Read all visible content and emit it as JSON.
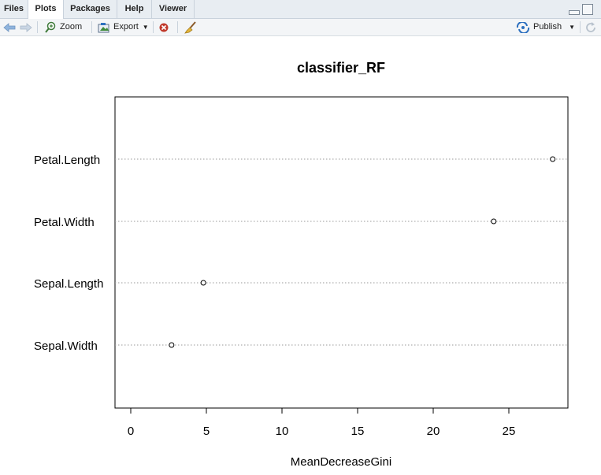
{
  "tabs": [
    "Files",
    "Plots",
    "Packages",
    "Help",
    "Viewer"
  ],
  "active_tab": "Plots",
  "toolbar": {
    "zoom_label": "Zoom",
    "export_label": "Export",
    "publish_label": "Publish",
    "icons": [
      "arrow-left-icon",
      "arrow-right-icon",
      "zoom-icon",
      "export-icon",
      "clear-icon",
      "broom-icon",
      "publish-icon",
      "refresh-icon"
    ]
  },
  "colors": {
    "accent": "#2b6fbf",
    "tabbar": "#e8edf2",
    "toolbar": "#f3f5f7"
  },
  "chart_data": {
    "type": "scatter",
    "title": "classifier_RF",
    "xlabel": "MeanDecreaseGini",
    "ylabel": "",
    "categories": [
      "Petal.Length",
      "Petal.Width",
      "Sepal.Length",
      "Sepal.Width"
    ],
    "values": [
      27.9,
      24.0,
      4.8,
      2.7
    ],
    "xticks": [
      0,
      5,
      10,
      15,
      20,
      25
    ],
    "xlim": [
      -1,
      29.2
    ],
    "grid": "dotted horizontal",
    "legend": "none"
  }
}
